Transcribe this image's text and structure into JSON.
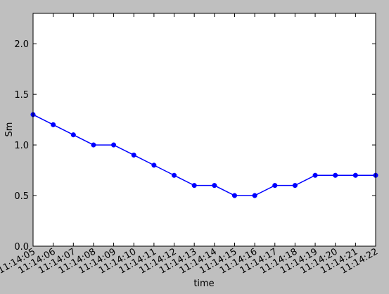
{
  "chart_data": {
    "type": "line",
    "title": "",
    "xlabel": "time",
    "ylabel": "Sm",
    "categories": [
      "11:14:05",
      "11:14:06",
      "11:14:07",
      "11:14:08",
      "11:14:09",
      "11:14:10",
      "11:14:11",
      "11:14:12",
      "11:14:13",
      "11:14:14",
      "11:14:15",
      "11:14:16",
      "11:14:17",
      "11:14:18",
      "11:14:19",
      "11:14:20",
      "11:14:21",
      "11:14:22"
    ],
    "x_tick_labels": [
      "11:14:05",
      "11:14:06",
      "11:14:07",
      "11:14:08",
      "11:14:09",
      "11:14:10",
      "11:14:11",
      "11:14:12",
      "11:14:13",
      "11:14:14",
      "11:14:15",
      "11:14:16",
      "11:14:17",
      "11:14:18",
      "11:14:19",
      "11:14:20",
      "11:14:21",
      "11:14:22"
    ],
    "series": [
      {
        "values": [
          1.3,
          1.2,
          1.1,
          1.0,
          1.0,
          0.9,
          0.8,
          0.7,
          0.6,
          0.6,
          0.5,
          0.5,
          0.6,
          0.6,
          0.7,
          0.7,
          0.7,
          0.7
        ],
        "color": "#0000ff",
        "marker": "circle"
      }
    ],
    "ylim": [
      0.0,
      2.3
    ],
    "y_ticks": [
      0.0,
      0.5,
      1.0,
      1.5,
      2.0
    ],
    "y_tick_labels": [
      "0.0",
      "0.5",
      "1.0",
      "1.5",
      "2.0"
    ],
    "grid": false,
    "legend": "none",
    "background": "#bfbfbf",
    "plot_background": "#ffffff"
  }
}
